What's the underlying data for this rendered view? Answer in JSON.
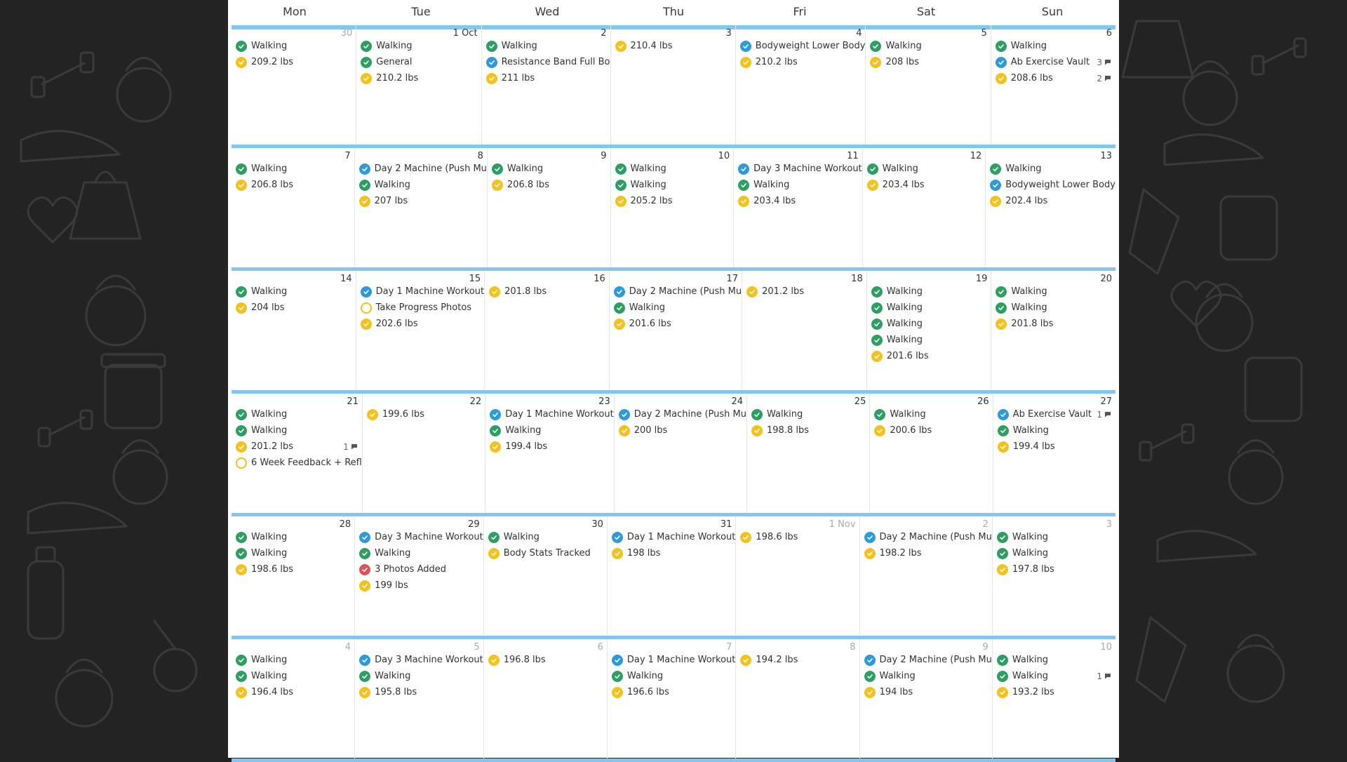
{
  "weekdays": [
    "Mon",
    "Tue",
    "Wed",
    "Thu",
    "Fri",
    "Sat",
    "Sun"
  ],
  "colors": {
    "green": "#2e9e62",
    "blue": "#2d9bd8",
    "yellow": "#f4c21c",
    "red": "#e0505a",
    "accent": "#7ec8f1"
  },
  "weeks": [
    [
      {
        "date": "30",
        "muted": true,
        "entries": [
          {
            "status": "green",
            "label": "Walking"
          },
          {
            "status": "yellow",
            "label": "209.2 lbs"
          }
        ]
      },
      {
        "date": "1 Oct",
        "muted": false,
        "entries": [
          {
            "status": "green",
            "label": "Walking"
          },
          {
            "status": "green",
            "label": "General"
          },
          {
            "status": "yellow",
            "label": "210.2 lbs"
          }
        ]
      },
      {
        "date": "2",
        "muted": false,
        "entries": [
          {
            "status": "green",
            "label": "Walking"
          },
          {
            "status": "blue",
            "label": "Resistance Band Full Bo"
          },
          {
            "status": "yellow",
            "label": "211 lbs"
          }
        ]
      },
      {
        "date": "3",
        "muted": false,
        "entries": [
          {
            "status": "yellow",
            "label": "210.4 lbs"
          }
        ]
      },
      {
        "date": "4",
        "muted": false,
        "entries": [
          {
            "status": "blue",
            "label": "Bodyweight Lower Body"
          },
          {
            "status": "yellow",
            "label": "210.2 lbs"
          }
        ]
      },
      {
        "date": "5",
        "muted": false,
        "entries": [
          {
            "status": "green",
            "label": "Walking"
          },
          {
            "status": "yellow",
            "label": "208 lbs"
          }
        ]
      },
      {
        "date": "6",
        "muted": false,
        "entries": [
          {
            "status": "green",
            "label": "Walking"
          },
          {
            "status": "blue",
            "label": "Ab Exercise Vault",
            "comments": "3"
          },
          {
            "status": "yellow",
            "label": "208.6 lbs",
            "comments": "2"
          }
        ]
      }
    ],
    [
      {
        "date": "7",
        "muted": false,
        "entries": [
          {
            "status": "green",
            "label": "Walking"
          },
          {
            "status": "yellow",
            "label": "206.8 lbs"
          }
        ]
      },
      {
        "date": "8",
        "muted": false,
        "entries": [
          {
            "status": "blue",
            "label": "Day 2 Machine (Push Mu"
          },
          {
            "status": "green",
            "label": "Walking"
          },
          {
            "status": "yellow",
            "label": "207 lbs"
          }
        ]
      },
      {
        "date": "9",
        "muted": false,
        "entries": [
          {
            "status": "green",
            "label": "Walking"
          },
          {
            "status": "yellow",
            "label": "206.8 lbs"
          }
        ]
      },
      {
        "date": "10",
        "muted": false,
        "entries": [
          {
            "status": "green",
            "label": "Walking"
          },
          {
            "status": "green",
            "label": "Walking"
          },
          {
            "status": "yellow",
            "label": "205.2 lbs"
          }
        ]
      },
      {
        "date": "11",
        "muted": false,
        "entries": [
          {
            "status": "blue",
            "label": "Day 3 Machine Workout"
          },
          {
            "status": "green",
            "label": "Walking"
          },
          {
            "status": "yellow",
            "label": "203.4 lbs"
          }
        ]
      },
      {
        "date": "12",
        "muted": false,
        "entries": [
          {
            "status": "green",
            "label": "Walking"
          },
          {
            "status": "yellow",
            "label": "203.4 lbs"
          }
        ]
      },
      {
        "date": "13",
        "muted": false,
        "entries": [
          {
            "status": "green",
            "label": "Walking"
          },
          {
            "status": "blue",
            "label": "Bodyweight Lower Body"
          },
          {
            "status": "yellow",
            "label": "202.4 lbs"
          }
        ]
      }
    ],
    [
      {
        "date": "14",
        "muted": false,
        "entries": [
          {
            "status": "green",
            "label": "Walking"
          },
          {
            "status": "yellow",
            "label": "204 lbs"
          }
        ]
      },
      {
        "date": "15",
        "muted": false,
        "entries": [
          {
            "status": "blue",
            "label": "Day 1 Machine Workout"
          },
          {
            "status": "empty",
            "label": "Take Progress Photos"
          },
          {
            "status": "yellow",
            "label": "202.6 lbs"
          }
        ]
      },
      {
        "date": "16",
        "muted": false,
        "entries": [
          {
            "status": "yellow",
            "label": "201.8 lbs"
          }
        ]
      },
      {
        "date": "17",
        "muted": false,
        "entries": [
          {
            "status": "blue",
            "label": "Day 2 Machine (Push Mu"
          },
          {
            "status": "green",
            "label": "Walking"
          },
          {
            "status": "yellow",
            "label": "201.6 lbs"
          }
        ]
      },
      {
        "date": "18",
        "muted": false,
        "entries": [
          {
            "status": "yellow",
            "label": "201.2 lbs"
          }
        ]
      },
      {
        "date": "19",
        "muted": false,
        "entries": [
          {
            "status": "green",
            "label": "Walking"
          },
          {
            "status": "green",
            "label": "Walking"
          },
          {
            "status": "green",
            "label": "Walking"
          },
          {
            "status": "green",
            "label": "Walking"
          },
          {
            "status": "yellow",
            "label": "201.6 lbs"
          }
        ]
      },
      {
        "date": "20",
        "muted": false,
        "entries": [
          {
            "status": "green",
            "label": "Walking"
          },
          {
            "status": "green",
            "label": "Walking"
          },
          {
            "status": "yellow",
            "label": "201.8 lbs"
          }
        ]
      }
    ],
    [
      {
        "date": "21",
        "muted": false,
        "entries": [
          {
            "status": "green",
            "label": "Walking"
          },
          {
            "status": "green",
            "label": "Walking"
          },
          {
            "status": "yellow",
            "label": "201.2 lbs",
            "comments": "1"
          },
          {
            "status": "empty",
            "label": "6 Week Feedback + Refl"
          }
        ]
      },
      {
        "date": "22",
        "muted": false,
        "entries": [
          {
            "status": "yellow",
            "label": "199.6 lbs"
          }
        ]
      },
      {
        "date": "23",
        "muted": false,
        "entries": [
          {
            "status": "blue",
            "label": "Day 1 Machine Workout"
          },
          {
            "status": "green",
            "label": "Walking"
          },
          {
            "status": "yellow",
            "label": "199.4 lbs"
          }
        ]
      },
      {
        "date": "24",
        "muted": false,
        "entries": [
          {
            "status": "blue",
            "label": "Day 2 Machine (Push Mu"
          },
          {
            "status": "yellow",
            "label": "200 lbs"
          }
        ]
      },
      {
        "date": "25",
        "muted": false,
        "entries": [
          {
            "status": "green",
            "label": "Walking"
          },
          {
            "status": "yellow",
            "label": "198.8 lbs"
          }
        ]
      },
      {
        "date": "26",
        "muted": false,
        "entries": [
          {
            "status": "green",
            "label": "Walking"
          },
          {
            "status": "yellow",
            "label": "200.6 lbs"
          }
        ]
      },
      {
        "date": "27",
        "muted": false,
        "entries": [
          {
            "status": "blue",
            "label": "Ab Exercise Vault",
            "comments": "1"
          },
          {
            "status": "green",
            "label": "Walking"
          },
          {
            "status": "yellow",
            "label": "199.4 lbs"
          }
        ]
      }
    ],
    [
      {
        "date": "28",
        "muted": false,
        "entries": [
          {
            "status": "green",
            "label": "Walking"
          },
          {
            "status": "green",
            "label": "Walking"
          },
          {
            "status": "yellow",
            "label": "198.6 lbs"
          }
        ]
      },
      {
        "date": "29",
        "muted": false,
        "entries": [
          {
            "status": "blue",
            "label": "Day 3 Machine Workout"
          },
          {
            "status": "green",
            "label": "Walking"
          },
          {
            "status": "red",
            "label": "3 Photos Added"
          },
          {
            "status": "yellow",
            "label": "199 lbs"
          }
        ]
      },
      {
        "date": "30",
        "muted": false,
        "entries": [
          {
            "status": "green",
            "label": "Walking"
          },
          {
            "status": "yellow",
            "label": "Body Stats Tracked"
          }
        ]
      },
      {
        "date": "31",
        "muted": false,
        "entries": [
          {
            "status": "blue",
            "label": "Day 1 Machine Workout"
          },
          {
            "status": "yellow",
            "label": "198 lbs"
          }
        ]
      },
      {
        "date": "1 Nov",
        "muted": true,
        "entries": [
          {
            "status": "yellow",
            "label": "198.6 lbs"
          }
        ]
      },
      {
        "date": "2",
        "muted": true,
        "entries": [
          {
            "status": "blue",
            "label": "Day 2 Machine (Push Mu"
          },
          {
            "status": "yellow",
            "label": "198.2 lbs"
          }
        ]
      },
      {
        "date": "3",
        "muted": true,
        "entries": [
          {
            "status": "green",
            "label": "Walking"
          },
          {
            "status": "green",
            "label": "Walking"
          },
          {
            "status": "yellow",
            "label": "197.8 lbs"
          }
        ]
      }
    ],
    [
      {
        "date": "4",
        "muted": true,
        "entries": [
          {
            "status": "green",
            "label": "Walking"
          },
          {
            "status": "green",
            "label": "Walking"
          },
          {
            "status": "yellow",
            "label": "196.4 lbs"
          }
        ]
      },
      {
        "date": "5",
        "muted": true,
        "entries": [
          {
            "status": "blue",
            "label": "Day 3 Machine Workout"
          },
          {
            "status": "green",
            "label": "Walking"
          },
          {
            "status": "yellow",
            "label": "195.8 lbs"
          }
        ]
      },
      {
        "date": "6",
        "muted": true,
        "entries": [
          {
            "status": "yellow",
            "label": "196.8 lbs"
          }
        ]
      },
      {
        "date": "7",
        "muted": true,
        "entries": [
          {
            "status": "blue",
            "label": "Day 1 Machine Workout"
          },
          {
            "status": "green",
            "label": "Walking"
          },
          {
            "status": "yellow",
            "label": "196.6 lbs"
          }
        ]
      },
      {
        "date": "8",
        "muted": true,
        "entries": [
          {
            "status": "yellow",
            "label": "194.2 lbs"
          }
        ]
      },
      {
        "date": "9",
        "muted": true,
        "entries": [
          {
            "status": "blue",
            "label": "Day 2 Machine (Push Mu"
          },
          {
            "status": "green",
            "label": "Walking"
          },
          {
            "status": "yellow",
            "label": "194 lbs"
          }
        ]
      },
      {
        "date": "10",
        "muted": true,
        "entries": [
          {
            "status": "green",
            "label": "Walking"
          },
          {
            "status": "green",
            "label": "Walking",
            "comments": "1"
          },
          {
            "status": "yellow",
            "label": "193.2 lbs"
          }
        ]
      }
    ]
  ]
}
